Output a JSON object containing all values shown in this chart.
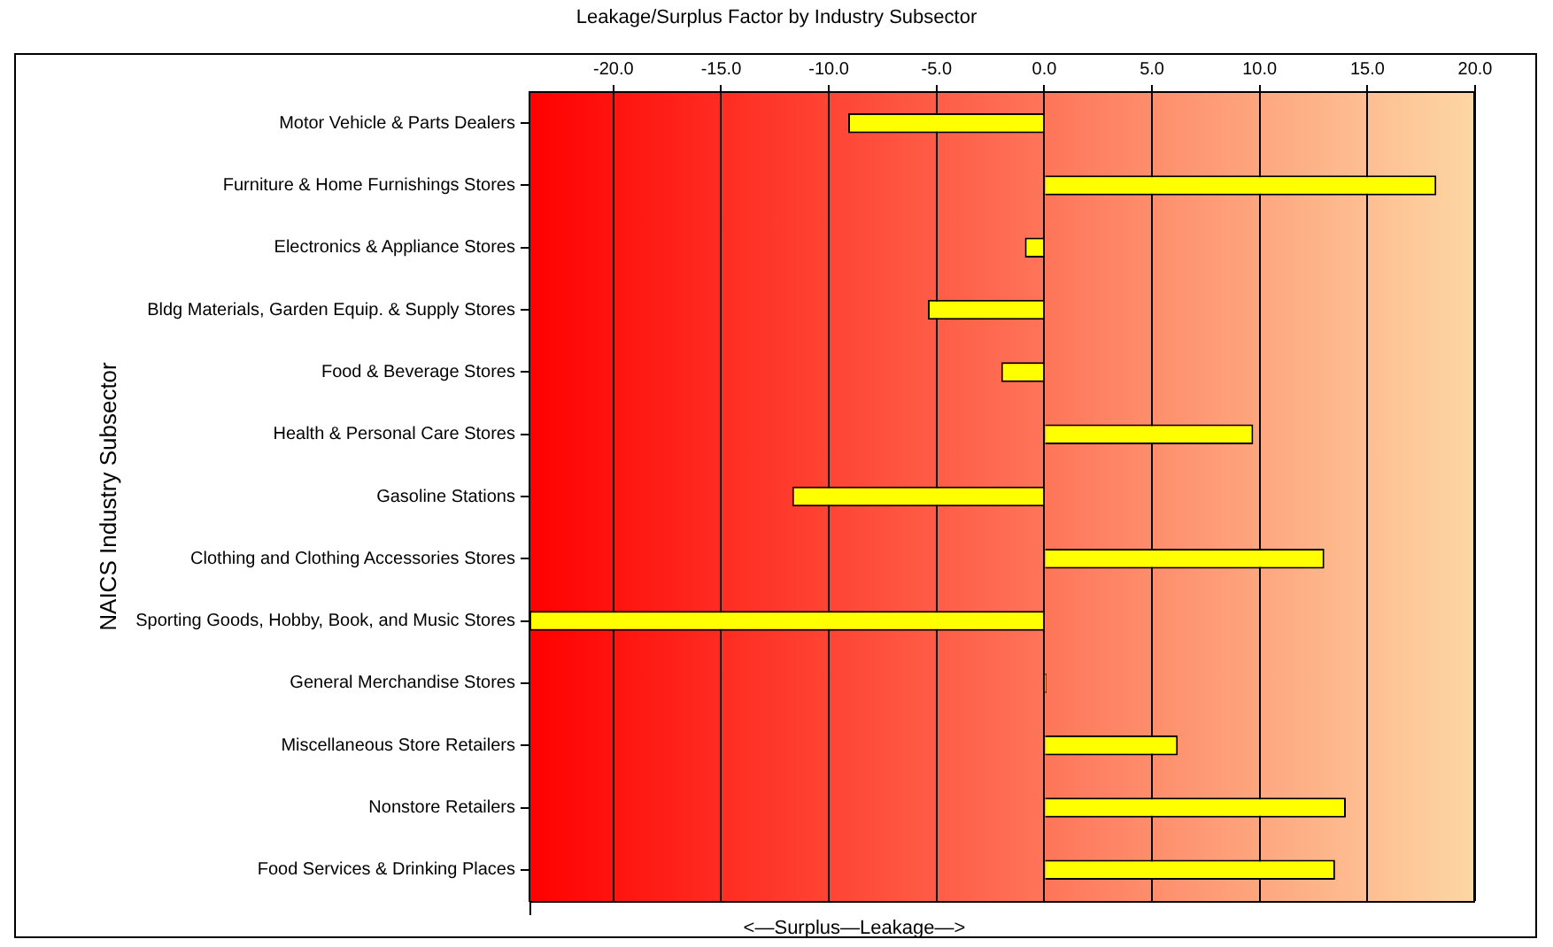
{
  "chart_data": {
    "type": "bar",
    "orientation": "horizontal",
    "title": "Leakage/Surplus Factor by Industry Subsector",
    "xlabel": "<—Surplus—Leakage—>",
    "ylabel": "NAICS Industry Subsector",
    "categories": [
      "Motor Vehicle & Parts Dealers",
      "Furniture & Home Furnishings Stores",
      "Electronics & Appliance Stores",
      "Bldg Materials, Garden Equip. & Supply Stores",
      "Food & Beverage Stores",
      "Health & Personal Care Stores",
      "Gasoline Stations",
      "Clothing and Clothing Accessories Stores",
      "Sporting Goods, Hobby, Book, and Music Stores",
      "General Merchandise Stores",
      "Miscellaneous Store Retailers",
      "Nonstore Retailers",
      "Food Services & Drinking Places"
    ],
    "values": [
      -9.1,
      18.2,
      -0.9,
      -5.4,
      -2.0,
      9.7,
      -11.7,
      13.0,
      -23.9,
      0.1,
      6.2,
      14.0,
      13.5
    ],
    "color": "#ffff00",
    "xlim": [
      -23.9,
      20
    ],
    "xticks": [
      {
        "value": -20,
        "label": "-20.0"
      },
      {
        "value": -15,
        "label": "-15.0"
      },
      {
        "value": -10,
        "label": "-10.0"
      },
      {
        "value": -5,
        "label": "-5.0"
      },
      {
        "value": 0,
        "label": "0.0"
      },
      {
        "value": 5,
        "label": "5.0"
      },
      {
        "value": 10,
        "label": "10.0"
      },
      {
        "value": 15,
        "label": "15.0"
      },
      {
        "value": 20,
        "label": "20.0"
      }
    ],
    "grid": "x"
  }
}
